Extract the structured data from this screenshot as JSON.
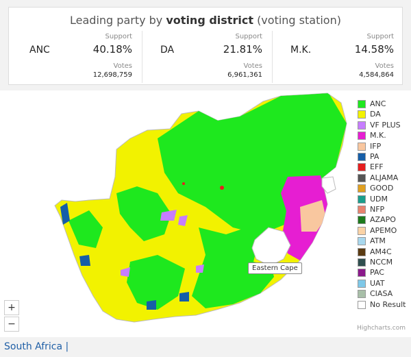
{
  "summary": {
    "title_prefix": "Leading party by",
    "title_bold": "voting district",
    "title_suffix": "(voting station)",
    "support_label": "Support",
    "votes_label": "Votes",
    "parties": [
      {
        "name": "ANC",
        "support": "40.18%",
        "votes": "12,698,759"
      },
      {
        "name": "DA",
        "support": "21.81%",
        "votes": "6,961,361"
      },
      {
        "name": "M.K.",
        "support": "14.58%",
        "votes": "4,584,864"
      }
    ]
  },
  "legend": [
    {
      "label": "ANC",
      "color": "#1ee81e"
    },
    {
      "label": "DA",
      "color": "#f2f200"
    },
    {
      "label": "VF PLUS",
      "color": "#c77dff"
    },
    {
      "label": "M.K.",
      "color": "#e61ed2"
    },
    {
      "label": "IFP",
      "color": "#f9c79f"
    },
    {
      "label": "PA",
      "color": "#165ea8"
    },
    {
      "label": "EFF",
      "color": "#e61e1e"
    },
    {
      "label": "ALJAMA",
      "color": "#555555"
    },
    {
      "label": "GOOD",
      "color": "#e0a020"
    },
    {
      "label": "UDM",
      "color": "#1a9e8c"
    },
    {
      "label": "NFP",
      "color": "#e8826e"
    },
    {
      "label": "AZAPO",
      "color": "#1d7a1d"
    },
    {
      "label": "APEMO",
      "color": "#fbd3a6"
    },
    {
      "label": "ATM",
      "color": "#a8d8ee"
    },
    {
      "label": "AM4C",
      "color": "#5a3a12"
    },
    {
      "label": "NCCM",
      "color": "#2f4f4f"
    },
    {
      "label": "PAC",
      "color": "#8b1a8b"
    },
    {
      "label": "UAT",
      "color": "#7ec8e8"
    },
    {
      "label": "CIASA",
      "color": "#a8bfa8"
    },
    {
      "label": "No Result",
      "color": "#ffffff"
    }
  ],
  "tooltip": "Eastern Cape",
  "zoom": {
    "in": "+",
    "out": "−"
  },
  "credits": "Highcharts.com",
  "breadcrumb": {
    "country": "South Africa",
    "separator": "|"
  }
}
